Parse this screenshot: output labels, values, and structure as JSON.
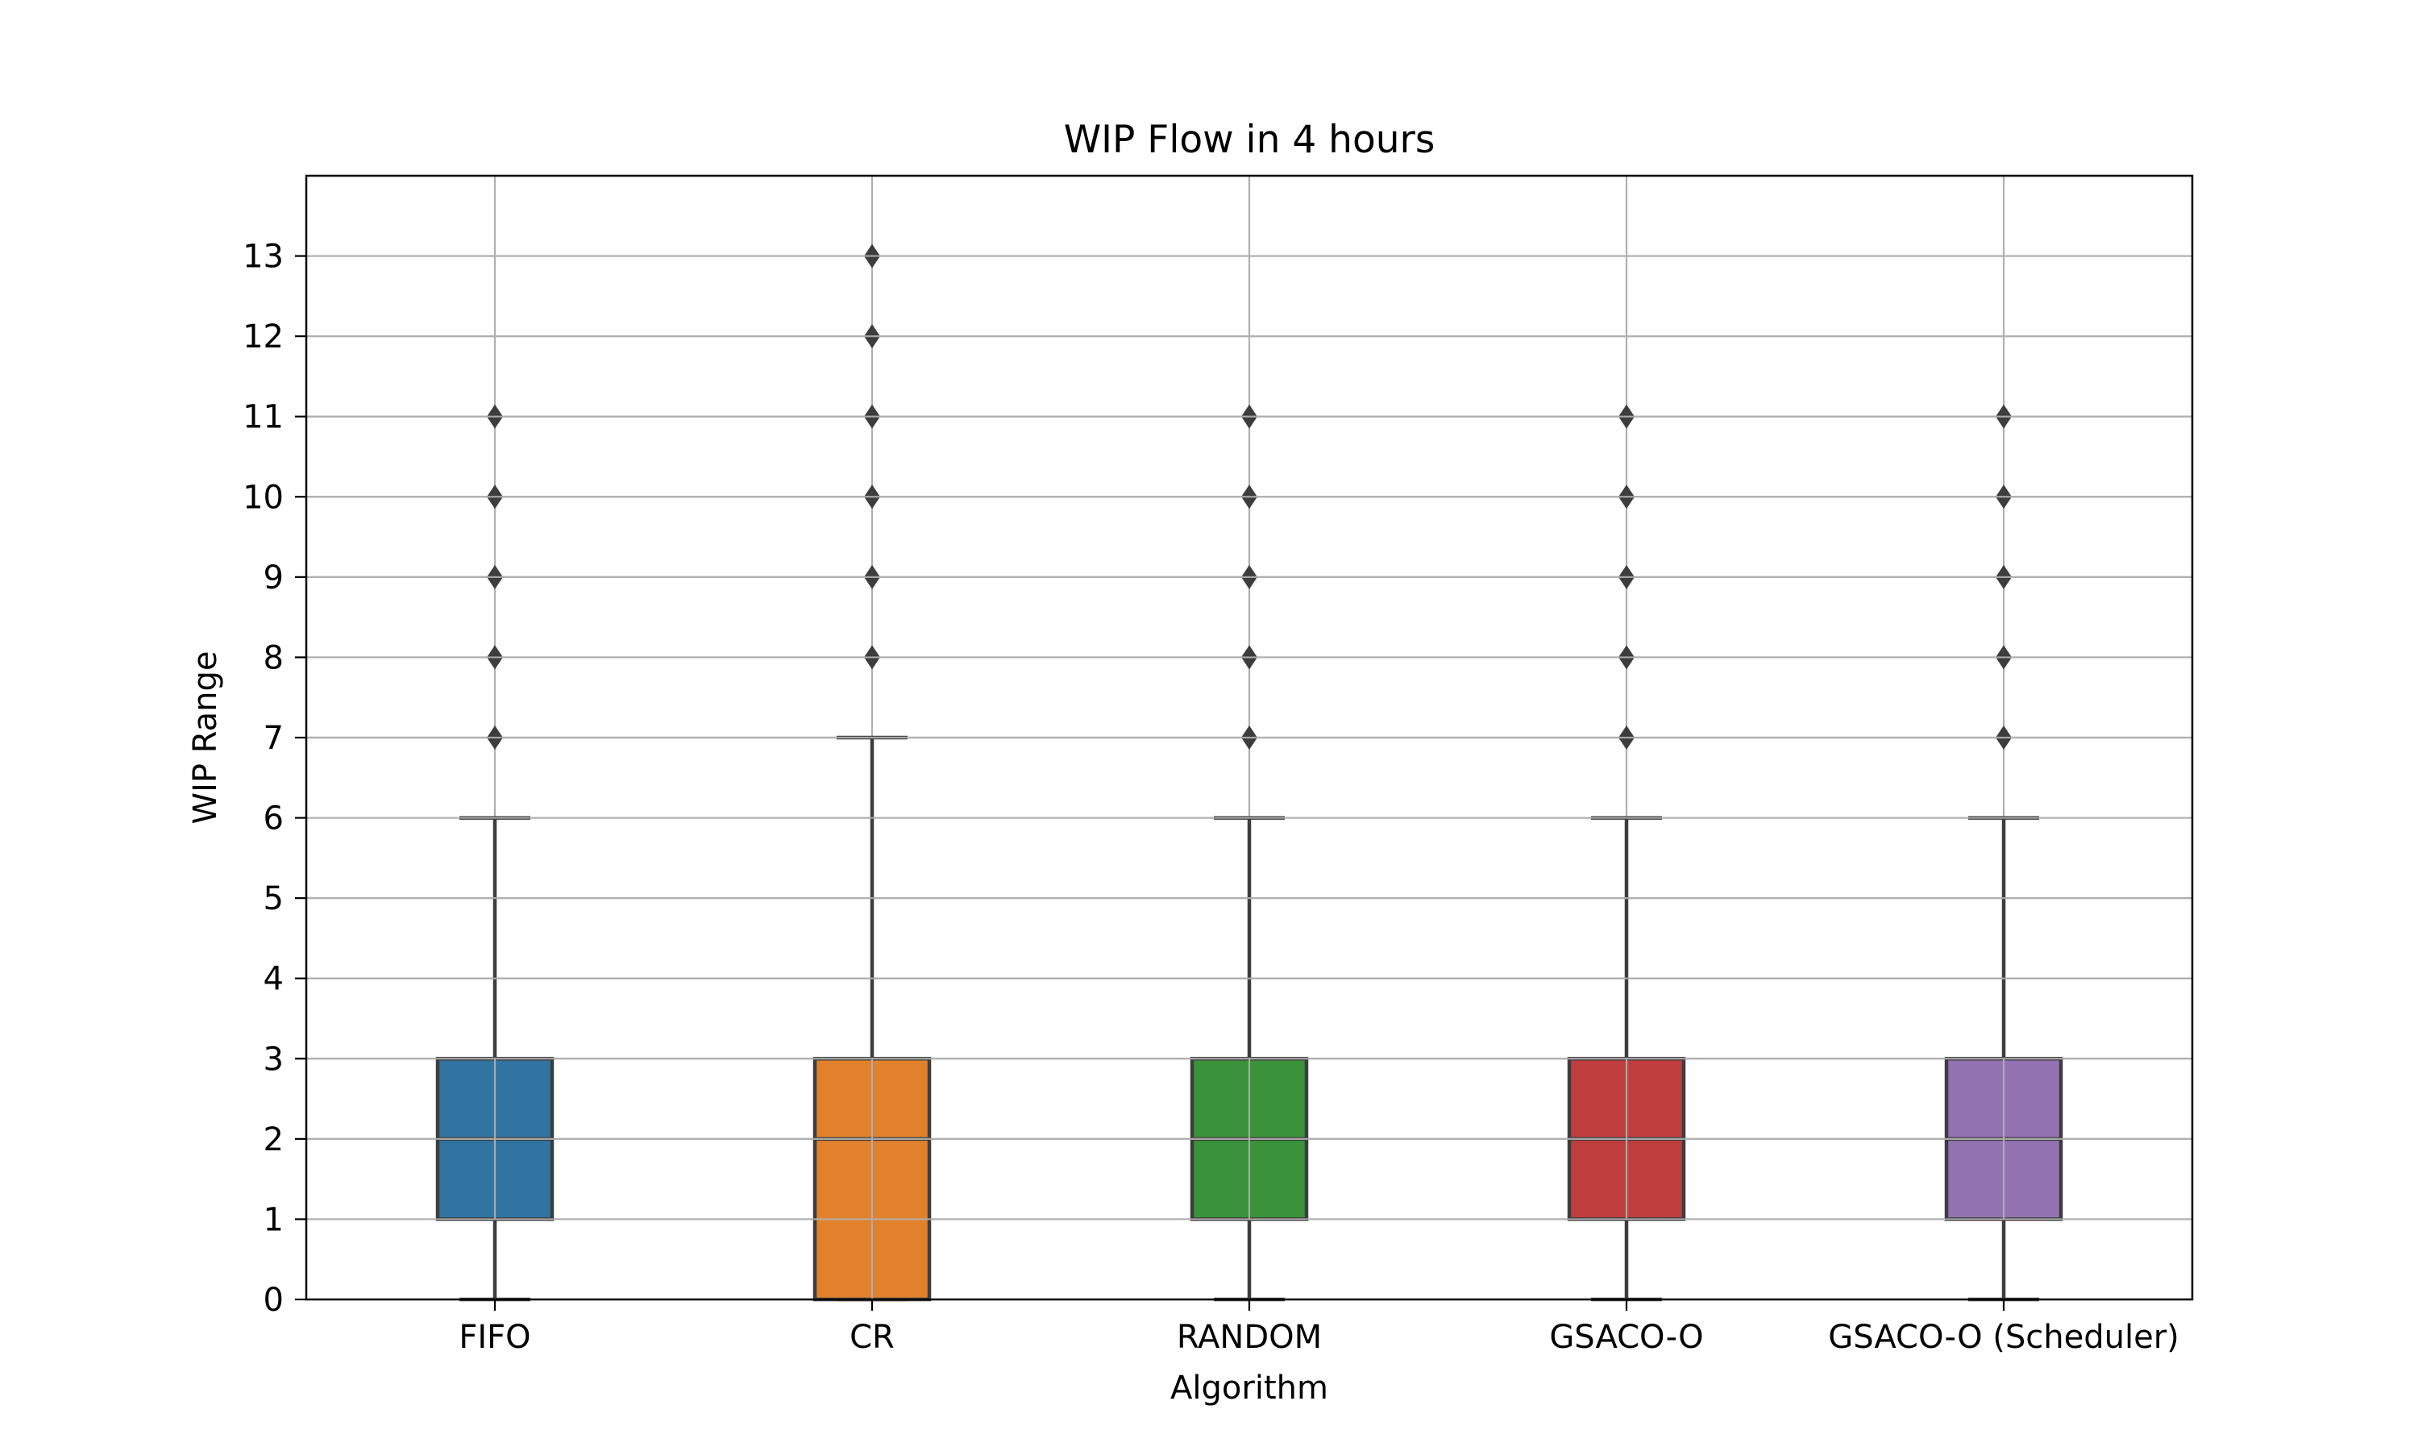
{
  "chart_data": {
    "type": "box",
    "title": "WIP Flow in 4 hours",
    "xlabel": "Algorithm",
    "ylabel": "WIP Range",
    "ylim": [
      0,
      14
    ],
    "yticks": [
      0,
      1,
      2,
      3,
      4,
      5,
      6,
      7,
      8,
      9,
      10,
      11,
      12,
      13
    ],
    "grid": true,
    "categories": [
      "FIFO",
      "CR",
      "RANDOM",
      "GSACO-O",
      "GSACO-O (Scheduler)"
    ],
    "colors": [
      "#3274a1",
      "#e1812c",
      "#3a923a",
      "#c03d3e",
      "#9372b2"
    ],
    "boxes": [
      {
        "whisker_low": 0,
        "q1": 1,
        "median": 2,
        "q3": 3,
        "whisker_high": 6,
        "outliers": [
          7,
          8,
          9,
          10,
          11
        ]
      },
      {
        "whisker_low": 0,
        "q1": 0,
        "median": 2,
        "q3": 3,
        "whisker_high": 7,
        "outliers": [
          8,
          9,
          10,
          11,
          12,
          13
        ]
      },
      {
        "whisker_low": 0,
        "q1": 1,
        "median": 2,
        "q3": 3,
        "whisker_high": 6,
        "outliers": [
          7,
          8,
          9,
          10,
          11
        ]
      },
      {
        "whisker_low": 0,
        "q1": 1,
        "median": 2,
        "q3": 3,
        "whisker_high": 6,
        "outliers": [
          7,
          8,
          9,
          10,
          11
        ]
      },
      {
        "whisker_low": 0,
        "q1": 1,
        "median": 2,
        "q3": 3,
        "whisker_high": 6,
        "outliers": [
          7,
          8,
          9,
          10,
          11
        ]
      }
    ]
  }
}
